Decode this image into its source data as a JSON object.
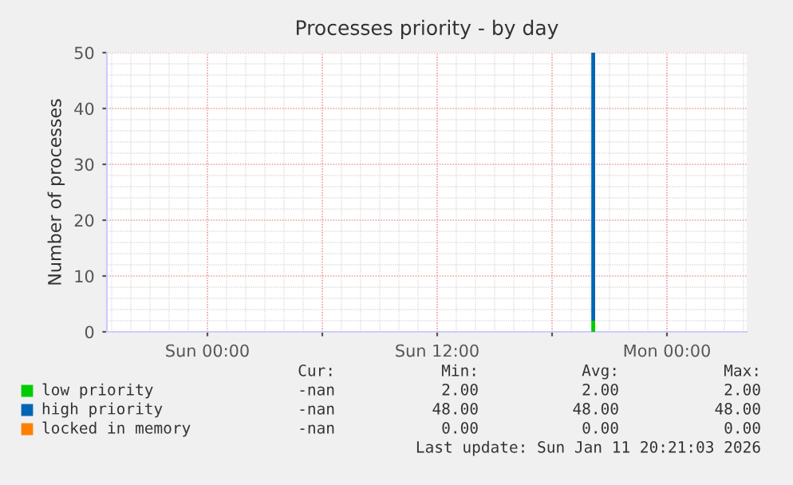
{
  "chart_data": {
    "type": "bar",
    "stacked": true,
    "title": "Processes priority - by day",
    "ylabel": "Number of processes",
    "x": [
      "2026-01-11T20:09"
    ],
    "series": [
      {
        "name": "low priority",
        "color": "#00cc00",
        "values": [
          2
        ]
      },
      {
        "name": "high priority",
        "color": "#0066b3",
        "values": [
          48
        ]
      },
      {
        "name": "locked in memory",
        "color": "#ff8000",
        "values": [
          0
        ]
      }
    ],
    "xlim": [
      "2026-01-10T18:45",
      "2026-01-12T04:10"
    ],
    "xticks": [
      {
        "value": "2026-01-11T00:00",
        "label": "Sun 00:00"
      },
      {
        "value": "2026-01-11T06:00",
        "label": null
      },
      {
        "value": "2026-01-11T12:00",
        "label": "Sun 12:00"
      },
      {
        "value": "2026-01-11T18:00",
        "label": null
      },
      {
        "value": "2026-01-12T00:00",
        "label": "Mon 00:00"
      }
    ],
    "ylim": [
      0,
      50
    ],
    "yticks": [
      0,
      10,
      20,
      30,
      40,
      50
    ],
    "grid": true,
    "legend": "bottom",
    "annotations": [
      "Cur:",
      "Min:",
      "Avg:",
      "Max:",
      "-nan",
      "2.00",
      "2.00",
      "2.00",
      "-nan",
      "48.00",
      "48.00",
      "48.00",
      "-nan",
      "0.00",
      "0.00",
      "0.00",
      "Last update: Sun Jan 11 20:21:03 2026"
    ]
  }
}
